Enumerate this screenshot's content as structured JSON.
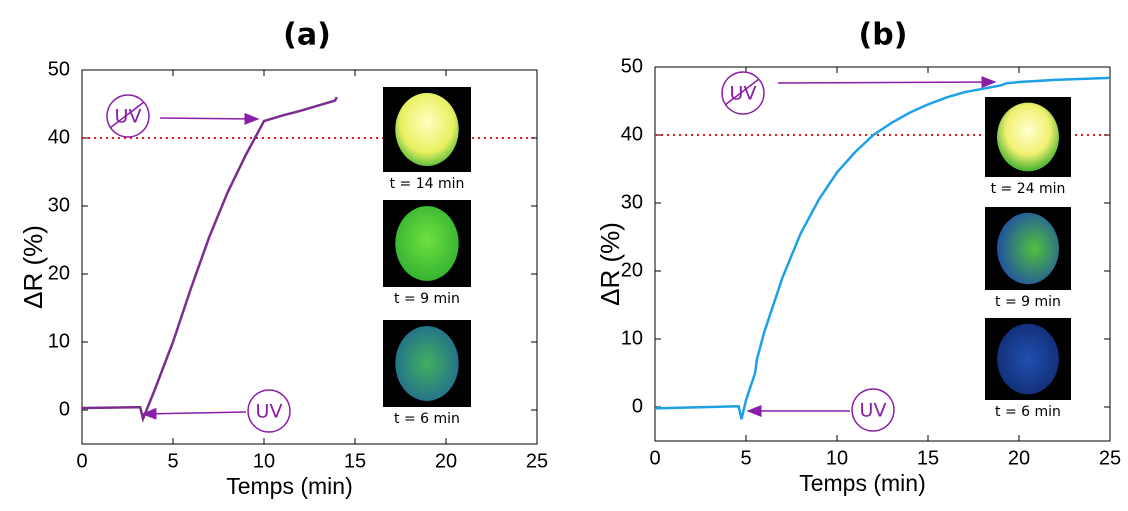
{
  "chart_data": [
    {
      "type": "line",
      "title": "(a)",
      "x_label": "Temps (min)",
      "y_label": "ΔR (%)",
      "x": [
        0,
        3,
        3.2,
        3.35,
        4,
        5,
        6,
        7,
        8,
        9,
        9.8,
        10,
        11,
        12,
        13,
        13.9,
        14
      ],
      "values": [
        0.3,
        0.4,
        0.4,
        -1.3,
        3,
        10,
        18,
        25.5,
        32,
        37.5,
        41.5,
        42.5,
        43.3,
        44,
        44.8,
        45.5,
        46
      ],
      "color": "#7b2d8e",
      "threshold": 40,
      "threshold_color": "#d62020",
      "xlim": [
        0,
        25
      ],
      "ylim": [
        -5,
        50
      ],
      "xticks": [
        0,
        5,
        10,
        15,
        20,
        25
      ],
      "yticks": [
        0,
        10,
        20,
        30,
        40,
        50
      ],
      "annotations": [
        "UV",
        "UV"
      ],
      "inset_labels": [
        "t = 14 min",
        "t = 9 min",
        "t = 6 min"
      ]
    },
    {
      "type": "line",
      "title": "(b)",
      "x_label": "Temps (min)",
      "y_label": "ΔR (%)",
      "x": [
        0,
        4.6,
        4.75,
        5,
        5.5,
        5.6,
        6,
        7,
        8,
        9,
        10,
        11,
        12,
        13,
        14,
        15,
        16,
        17,
        18,
        19,
        19.3,
        20,
        22,
        25
      ],
      "values": [
        -0.2,
        0.1,
        -1.8,
        1,
        5,
        7,
        11,
        19,
        25.5,
        30.5,
        34.5,
        37.5,
        40,
        41.8,
        43.3,
        44.5,
        45.5,
        46.3,
        46.8,
        47.3,
        47.6,
        47.8,
        48.1,
        48.4
      ],
      "color": "#1ea0e6",
      "threshold": 40,
      "threshold_color": "#d62020",
      "xlim": [
        0,
        25
      ],
      "ylim": [
        -5,
        50
      ],
      "xticks": [
        0,
        5,
        10,
        15,
        20,
        25
      ],
      "yticks": [
        0,
        10,
        20,
        30,
        40,
        50
      ],
      "annotations": [
        "UV",
        "UV"
      ],
      "inset_labels": [
        "t = 24 min",
        "t = 9 min",
        "t = 6 min"
      ]
    }
  ]
}
